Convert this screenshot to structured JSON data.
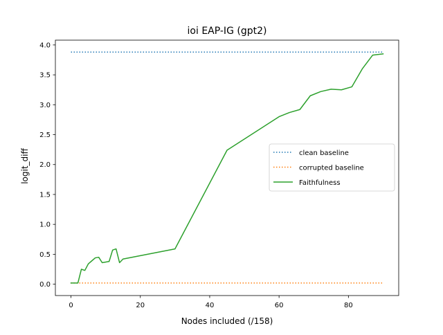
{
  "chart_data": {
    "type": "line",
    "title": "ioi EAP-IG (gpt2)",
    "xlabel": "Nodes included (/158)",
    "ylabel": "logit_diff",
    "xlim": [
      -4.5,
      94.5
    ],
    "ylim": [
      -0.19,
      4.08
    ],
    "xticks": [
      0,
      20,
      40,
      60,
      80
    ],
    "xtick_labels": [
      "0",
      "20",
      "40",
      "60",
      "80"
    ],
    "yticks": [
      0.0,
      0.5,
      1.0,
      1.5,
      2.0,
      2.5,
      3.0,
      3.5,
      4.0
    ],
    "ytick_labels": [
      "0.0",
      "0.5",
      "1.0",
      "1.5",
      "2.0",
      "2.5",
      "3.0",
      "3.5",
      "4.0"
    ],
    "grid": false,
    "legend_position": "center-right",
    "series": [
      {
        "name": "clean baseline",
        "style": "dotted",
        "color": "#1f77b4",
        "x": [
          0,
          90
        ],
        "y": [
          3.88,
          3.88
        ]
      },
      {
        "name": "corrupted baseline",
        "style": "dotted",
        "color": "#ff7f0e",
        "x": [
          0,
          90
        ],
        "y": [
          0.02,
          0.02
        ]
      },
      {
        "name": "Faithfulness",
        "style": "solid",
        "color": "#2ca02c",
        "x": [
          0,
          1,
          2,
          3,
          4,
          5,
          6,
          7,
          8,
          9,
          10,
          11,
          12,
          13,
          14,
          15,
          30,
          45,
          60,
          63,
          66,
          69,
          72,
          75,
          78,
          81,
          84,
          87,
          90
        ],
        "y": [
          0.02,
          0.02,
          0.02,
          0.25,
          0.23,
          0.34,
          0.39,
          0.44,
          0.45,
          0.36,
          0.37,
          0.38,
          0.57,
          0.59,
          0.36,
          0.42,
          0.59,
          2.24,
          2.8,
          2.87,
          2.92,
          3.15,
          3.22,
          3.26,
          3.25,
          3.3,
          3.6,
          3.83,
          3.85
        ]
      }
    ]
  }
}
